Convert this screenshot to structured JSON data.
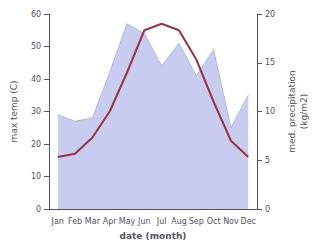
{
  "chart_data": {
    "type": "line",
    "categories": [
      "Jan",
      "Feb",
      "Mar",
      "Apr",
      "May",
      "Jun",
      "Jul",
      "Aug",
      "Sep",
      "Oct",
      "Nov",
      "Dec"
    ],
    "series": [
      {
        "type": "area",
        "color": "#c8cdf0",
        "values": [
          29,
          27,
          28,
          42,
          57,
          54,
          44,
          51,
          41,
          49,
          25,
          35
        ]
      },
      {
        "type": "line",
        "color": "#b0b8e8",
        "values": [
          29,
          27,
          28,
          42,
          57,
          54,
          44,
          51,
          41,
          49,
          25,
          35
        ]
      },
      {
        "type": "line",
        "color": "#993344",
        "values": [
          16,
          17,
          22,
          30,
          42,
          55,
          57,
          55,
          46,
          33,
          21,
          16
        ]
      }
    ],
    "xlabel": "date (month)",
    "ylabel": "max temp (C)",
    "y2label": "med. precipitation\n(kg/m2)",
    "ylim": [
      0,
      60
    ],
    "yticks": [
      0,
      10,
      20,
      30,
      40,
      50,
      60
    ],
    "y2lim": [
      0,
      20
    ],
    "y2ticks": [
      0,
      5,
      10,
      15,
      20
    ],
    "grid": false,
    "background_color": "#ffffff"
  }
}
